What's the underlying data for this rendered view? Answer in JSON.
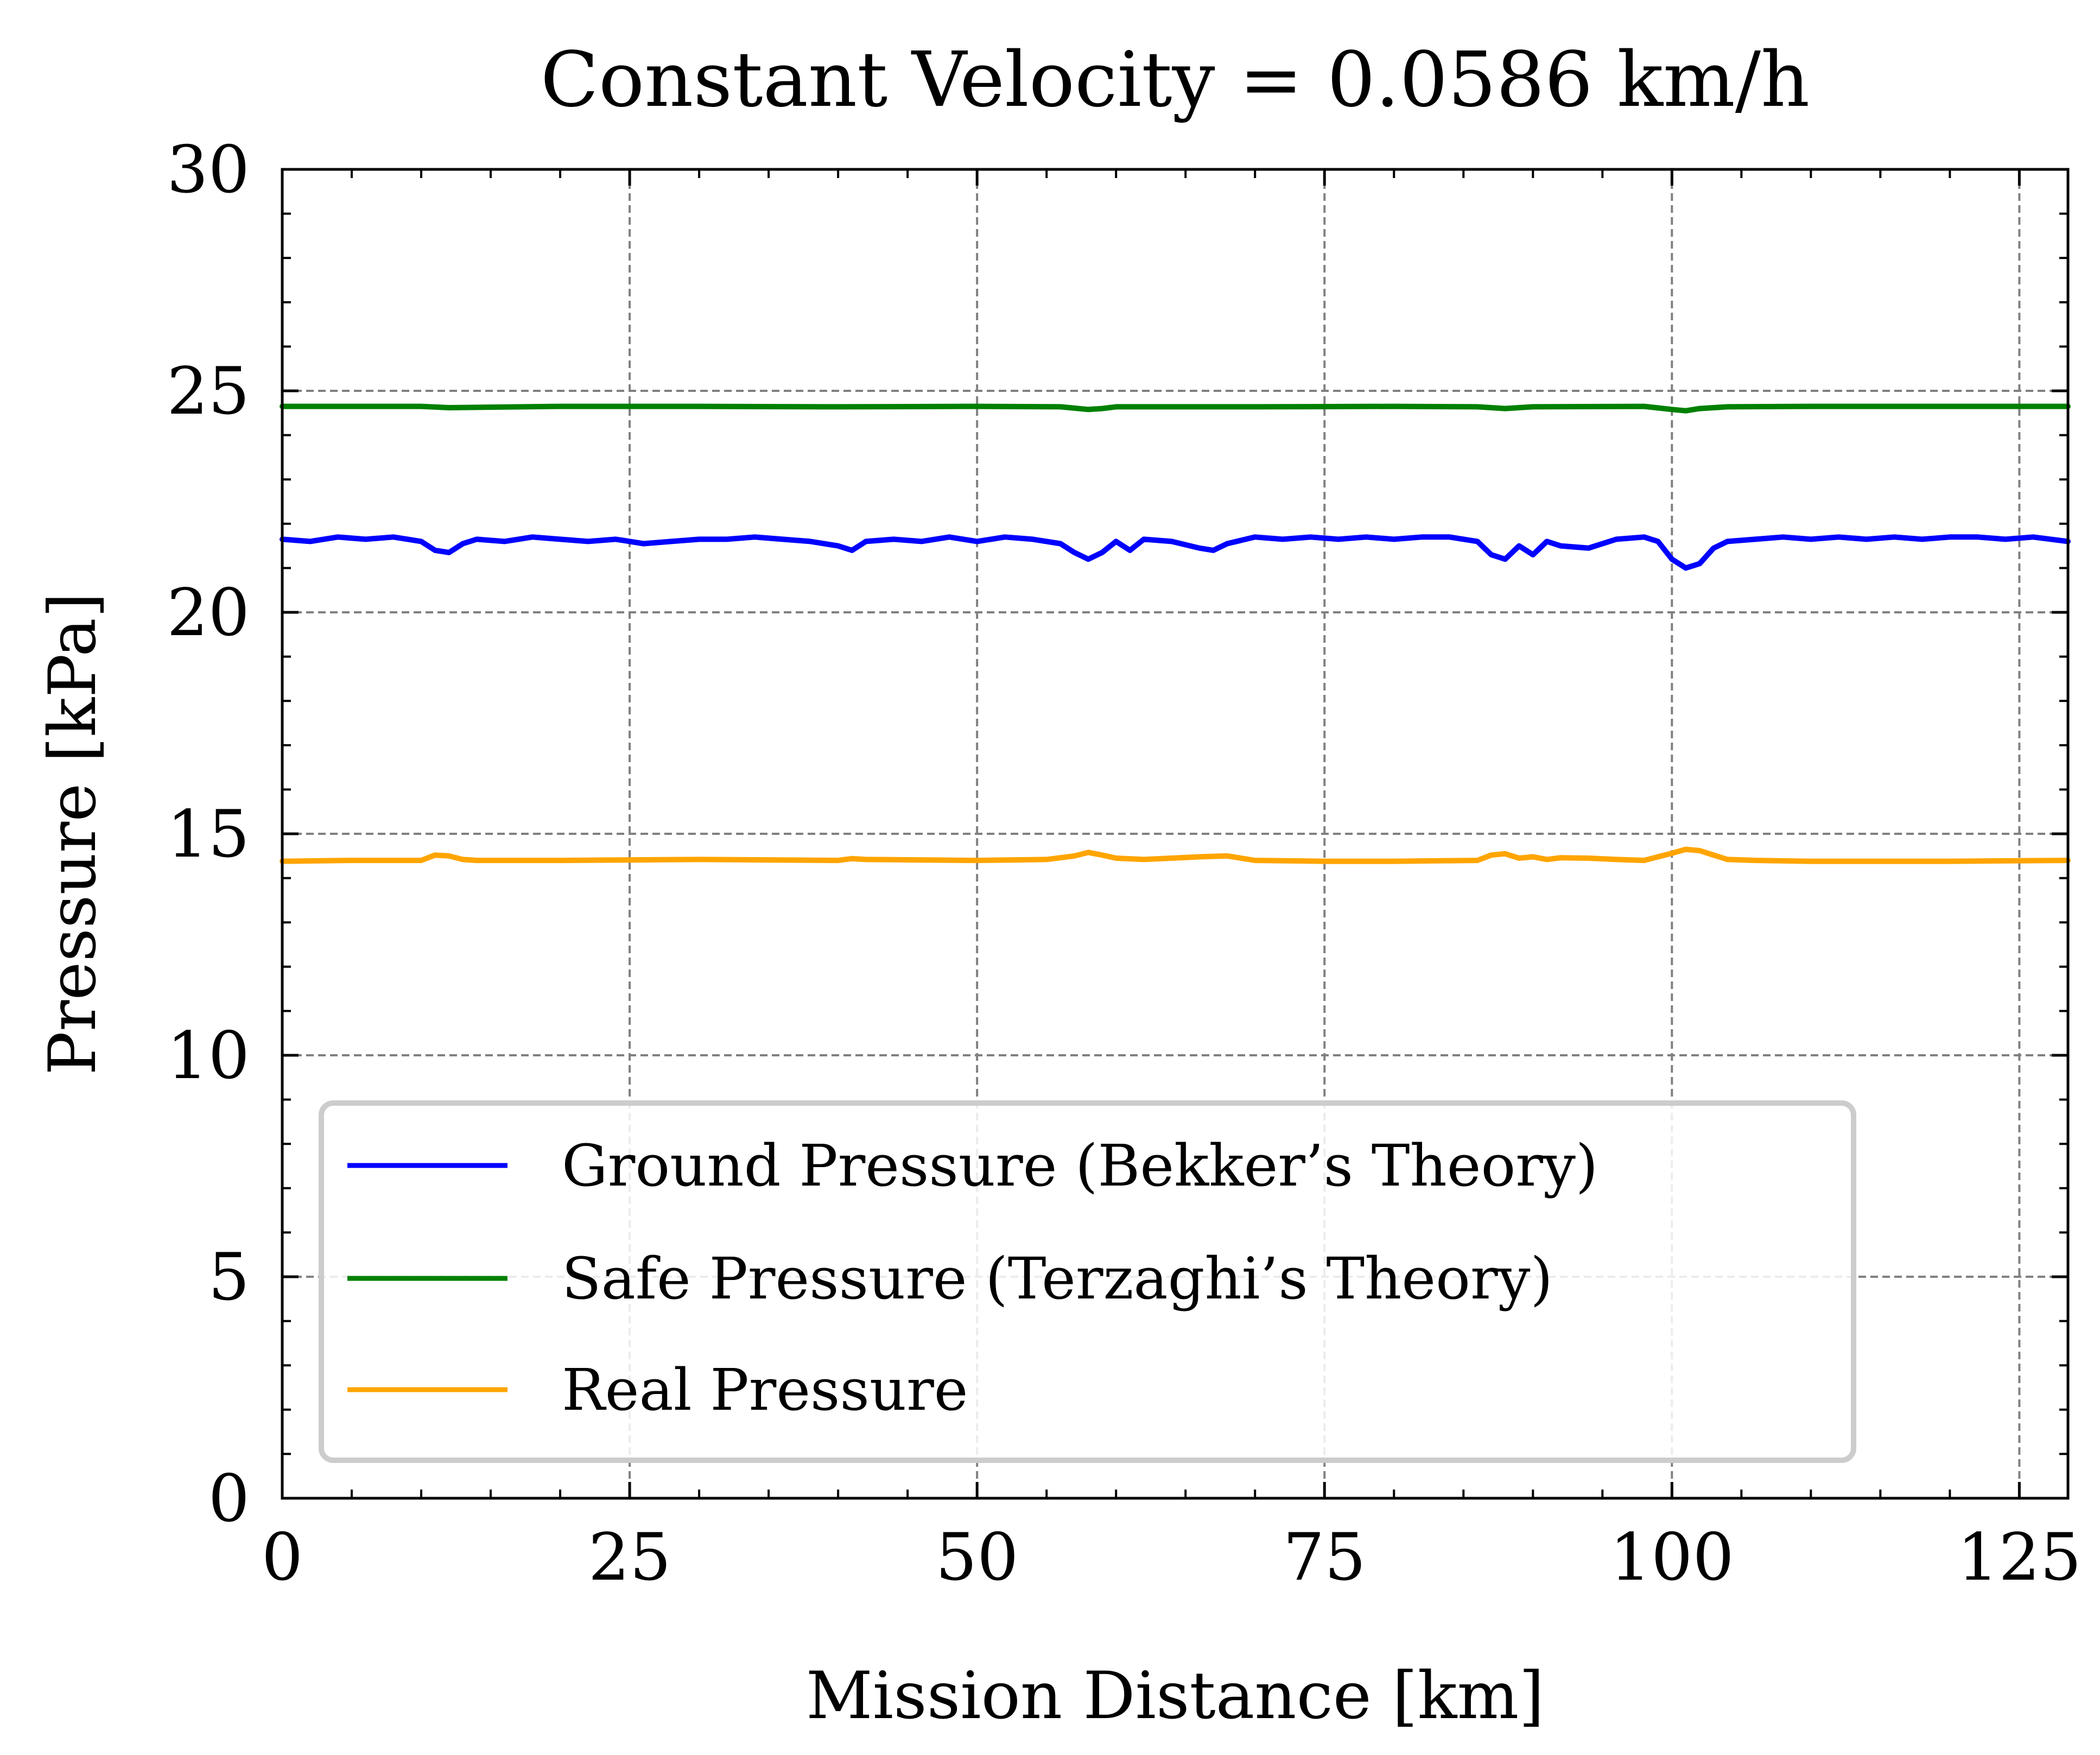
{
  "chart_data": {
    "type": "line",
    "title": "Constant Velocity = 0.0586 km/h",
    "xlabel": "Mission Distance [km]",
    "ylabel": "Pressure [kPa]",
    "xlim": [
      0,
      128.5
    ],
    "ylim": [
      0,
      30
    ],
    "xticks": [
      0,
      25,
      50,
      75,
      100,
      125
    ],
    "yticks": [
      0,
      5,
      10,
      15,
      20,
      25,
      30
    ],
    "grid": true,
    "legend_position": "lower-left",
    "series": [
      {
        "name": "Ground Pressure (Bekker’s Theory)",
        "color": "#0000ff",
        "x": [
          0,
          2,
          4,
          6,
          8,
          10,
          11,
          12,
          13,
          14,
          16,
          18,
          20,
          22,
          24,
          26,
          28,
          30,
          32,
          34,
          36,
          38,
          40,
          41,
          42,
          44,
          46,
          48,
          50,
          52,
          54,
          56,
          57,
          58,
          59,
          60,
          61,
          62,
          64,
          66,
          67,
          68,
          70,
          72,
          74,
          76,
          78,
          80,
          82,
          84,
          86,
          87,
          88,
          89,
          90,
          91,
          92,
          94,
          96,
          98,
          99,
          100,
          101,
          102,
          103,
          104,
          106,
          108,
          110,
          112,
          114,
          116,
          118,
          120,
          122,
          124,
          126,
          128.5
        ],
        "y": [
          21.65,
          21.6,
          21.7,
          21.65,
          21.7,
          21.6,
          21.4,
          21.35,
          21.55,
          21.65,
          21.6,
          21.7,
          21.65,
          21.6,
          21.65,
          21.55,
          21.6,
          21.65,
          21.65,
          21.7,
          21.65,
          21.6,
          21.5,
          21.4,
          21.6,
          21.65,
          21.6,
          21.7,
          21.6,
          21.7,
          21.65,
          21.55,
          21.35,
          21.2,
          21.35,
          21.6,
          21.4,
          21.65,
          21.6,
          21.45,
          21.4,
          21.55,
          21.7,
          21.65,
          21.7,
          21.65,
          21.7,
          21.65,
          21.7,
          21.7,
          21.6,
          21.3,
          21.2,
          21.5,
          21.3,
          21.6,
          21.5,
          21.45,
          21.65,
          21.7,
          21.6,
          21.2,
          21.0,
          21.1,
          21.45,
          21.6,
          21.65,
          21.7,
          21.65,
          21.7,
          21.65,
          21.7,
          21.65,
          21.7,
          21.7,
          21.65,
          21.7,
          21.6
        ]
      },
      {
        "name": "Safe Pressure (Terzaghi’s Theory)",
        "color": "#008000",
        "x": [
          0,
          10,
          12,
          20,
          30,
          40,
          50,
          56,
          58,
          59,
          60,
          70,
          80,
          86,
          88,
          90,
          98,
          100,
          101,
          102,
          104,
          110,
          120,
          128.5
        ],
        "y": [
          24.65,
          24.65,
          24.62,
          24.65,
          24.65,
          24.64,
          24.65,
          24.64,
          24.58,
          24.6,
          24.64,
          24.64,
          24.65,
          24.64,
          24.6,
          24.64,
          24.65,
          24.58,
          24.55,
          24.6,
          24.64,
          24.65,
          24.65,
          24.65
        ]
      },
      {
        "name": "Real Pressure",
        "color": "#ffa500",
        "x": [
          0,
          5,
          10,
          11,
          12,
          13,
          14,
          20,
          30,
          40,
          41,
          42,
          50,
          55,
          57,
          58,
          59,
          60,
          62,
          66,
          68,
          70,
          75,
          80,
          86,
          87,
          88,
          89,
          90,
          91,
          92,
          94,
          96,
          98,
          99,
          100,
          101,
          102,
          103,
          104,
          106,
          110,
          120,
          128.5
        ],
        "y": [
          14.38,
          14.4,
          14.4,
          14.52,
          14.5,
          14.42,
          14.4,
          14.4,
          14.42,
          14.4,
          14.44,
          14.42,
          14.4,
          14.42,
          14.5,
          14.58,
          14.52,
          14.45,
          14.42,
          14.48,
          14.5,
          14.4,
          14.38,
          14.38,
          14.4,
          14.52,
          14.55,
          14.45,
          14.48,
          14.42,
          14.46,
          14.45,
          14.42,
          14.4,
          14.48,
          14.56,
          14.65,
          14.62,
          14.52,
          14.42,
          14.4,
          14.38,
          14.38,
          14.4
        ]
      }
    ]
  }
}
